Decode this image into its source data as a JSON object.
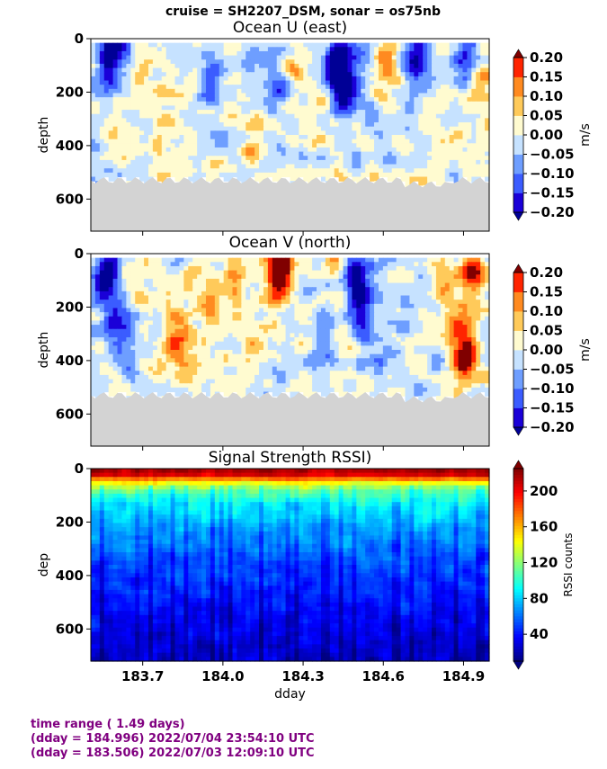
{
  "suptitle": "cruise = SH2207_DSM,  sonar = os75nb",
  "footer": {
    "line1": "time range ( 1.49 days)",
    "line2": "(dday = 184.996) 2022/07/04 23:54:10 UTC",
    "line3": "(dday = 183.506) 2022/07/03 12:09:10 UTC"
  },
  "colors": {
    "no_data": "#d3d3d3",
    "footer_text": "#800080"
  },
  "chart_data": [
    {
      "type": "heatmap",
      "title": "Ocean U (east)",
      "xlabel": "",
      "ylabel": "depth",
      "xlim": [
        183.506,
        184.996
      ],
      "ylim": [
        720,
        0
      ],
      "xticks": [
        183.7,
        184.0,
        184.3,
        184.6,
        184.9
      ],
      "xtick_labels": [
        "",
        "",
        "",
        "",
        ""
      ],
      "yticks": [
        0,
        200,
        400,
        600
      ],
      "ytick_labels": [
        "0",
        "200",
        "400",
        "600"
      ],
      "data_bottom_depth": 530,
      "colorbar": {
        "label": "m/s",
        "min": -0.2,
        "max": 0.2,
        "ticks": [
          0.2,
          0.15,
          0.1,
          0.05,
          0.0,
          -0.05,
          -0.1,
          -0.15,
          -0.2
        ],
        "tick_labels": [
          "0.20",
          "0.15",
          "0.10",
          "0.05",
          "0.00",
          "−0.05",
          "−0.10",
          "−0.15",
          "−0.20"
        ],
        "levels": [
          "#1a00d8",
          "#3b5cff",
          "#6e9eff",
          "#c6e2ff",
          "#fffbd0",
          "#ffca5a",
          "#ff8a20",
          "#ff2400"
        ],
        "extend_low": "#000096",
        "extend_high": "#800000"
      },
      "features": [
        {
          "x": 183.58,
          "depth": 70,
          "value": -0.22
        },
        {
          "x": 183.65,
          "depth": 60,
          "value": -0.12
        },
        {
          "x": 183.68,
          "depth": 90,
          "value": 0.12
        },
        {
          "x": 183.95,
          "depth": 110,
          "value": -0.12
        },
        {
          "x": 184.2,
          "depth": 200,
          "value": -0.08
        },
        {
          "x": 184.27,
          "depth": 80,
          "value": 0.08
        },
        {
          "x": 184.43,
          "depth": 60,
          "value": -0.22
        },
        {
          "x": 184.45,
          "depth": 180,
          "value": -0.2
        },
        {
          "x": 184.52,
          "depth": 120,
          "value": -0.1
        },
        {
          "x": 184.55,
          "depth": 300,
          "value": -0.06
        },
        {
          "x": 184.61,
          "depth": 100,
          "value": 0.1
        },
        {
          "x": 184.73,
          "depth": 80,
          "value": -0.2
        },
        {
          "x": 184.92,
          "depth": 70,
          "value": -0.15
        },
        {
          "x": 184.97,
          "depth": 120,
          "value": 0.07
        },
        {
          "x": 183.6,
          "depth": 350,
          "value": 0.06
        },
        {
          "x": 183.78,
          "depth": 320,
          "value": 0.05
        },
        {
          "x": 184.1,
          "depth": 420,
          "value": 0.04
        },
        {
          "x": 184.3,
          "depth": 380,
          "value": -0.05
        }
      ]
    },
    {
      "type": "heatmap",
      "title": "Ocean V (north)",
      "xlabel": "",
      "ylabel": "depth",
      "xlim": [
        183.506,
        184.996
      ],
      "ylim": [
        720,
        0
      ],
      "xticks": [
        183.7,
        184.0,
        184.3,
        184.6,
        184.9
      ],
      "xtick_labels": [
        "",
        "",
        "",
        "",
        ""
      ],
      "yticks": [
        0,
        200,
        400,
        600
      ],
      "ytick_labels": [
        "0",
        "200",
        "400",
        "600"
      ],
      "data_bottom_depth": 530,
      "colorbar": {
        "label": "m/s",
        "min": -0.2,
        "max": 0.2,
        "ticks": [
          0.2,
          0.15,
          0.1,
          0.05,
          0.0,
          -0.05,
          -0.1,
          -0.15,
          -0.2
        ],
        "tick_labels": [
          "0.20",
          "0.15",
          "0.10",
          "0.05",
          "0.00",
          "−0.05",
          "−0.10",
          "−0.15",
          "−0.20"
        ],
        "levels": [
          "#1a00d8",
          "#3b5cff",
          "#6e9eff",
          "#c6e2ff",
          "#fffbd0",
          "#ffca5a",
          "#ff8a20",
          "#ff2400"
        ],
        "extend_low": "#000096",
        "extend_high": "#800000"
      },
      "features": [
        {
          "x": 183.56,
          "depth": 80,
          "value": -0.24
        },
        {
          "x": 183.6,
          "depth": 250,
          "value": -0.12
        },
        {
          "x": 183.65,
          "depth": 400,
          "value": -0.08
        },
        {
          "x": 183.82,
          "depth": 300,
          "value": 0.09
        },
        {
          "x": 183.85,
          "depth": 380,
          "value": 0.14
        },
        {
          "x": 183.95,
          "depth": 200,
          "value": 0.08
        },
        {
          "x": 184.05,
          "depth": 120,
          "value": 0.1
        },
        {
          "x": 184.2,
          "depth": 50,
          "value": 0.16
        },
        {
          "x": 184.22,
          "depth": 50,
          "value": 0.22
        },
        {
          "x": 184.12,
          "depth": 350,
          "value": 0.06
        },
        {
          "x": 184.3,
          "depth": 250,
          "value": 0.03
        },
        {
          "x": 184.38,
          "depth": 350,
          "value": -0.08
        },
        {
          "x": 184.5,
          "depth": 90,
          "value": -0.24
        },
        {
          "x": 184.53,
          "depth": 230,
          "value": -0.18
        },
        {
          "x": 184.58,
          "depth": 400,
          "value": -0.1
        },
        {
          "x": 184.7,
          "depth": 250,
          "value": -0.06
        },
        {
          "x": 184.85,
          "depth": 180,
          "value": 0.1
        },
        {
          "x": 184.92,
          "depth": 350,
          "value": 0.12
        },
        {
          "x": 184.93,
          "depth": 60,
          "value": 0.18
        },
        {
          "x": 184.9,
          "depth": 380,
          "value": 0.2
        }
      ]
    },
    {
      "type": "heatmap",
      "title": "Signal Strength RSSI)",
      "xlabel": "dday",
      "ylabel": "dep",
      "xlim": [
        183.506,
        184.996
      ],
      "ylim": [
        720,
        0
      ],
      "xticks": [
        183.7,
        184.0,
        184.3,
        184.6,
        184.9
      ],
      "xtick_labels": [
        "183.7",
        "184.0",
        "184.3",
        "184.6",
        "184.9"
      ],
      "yticks": [
        0,
        200,
        400,
        600
      ],
      "ytick_labels": [
        "0",
        "200",
        "400",
        "600"
      ],
      "profile": [
        {
          "depth": 20,
          "value": 215
        },
        {
          "depth": 50,
          "value": 150
        },
        {
          "depth": 80,
          "value": 115
        },
        {
          "depth": 130,
          "value": 90
        },
        {
          "depth": 200,
          "value": 75
        },
        {
          "depth": 300,
          "value": 60
        },
        {
          "depth": 420,
          "value": 48
        },
        {
          "depth": 560,
          "value": 35
        },
        {
          "depth": 720,
          "value": 25
        }
      ],
      "colorbar": {
        "label": "RSSI counts",
        "min": 10,
        "max": 225,
        "ticks": [
          200,
          160,
          120,
          80,
          40
        ],
        "tick_labels": [
          "200",
          "160",
          "120",
          "80",
          "40"
        ],
        "extend_low": "#00007f",
        "extend_high": "#800000"
      }
    }
  ]
}
